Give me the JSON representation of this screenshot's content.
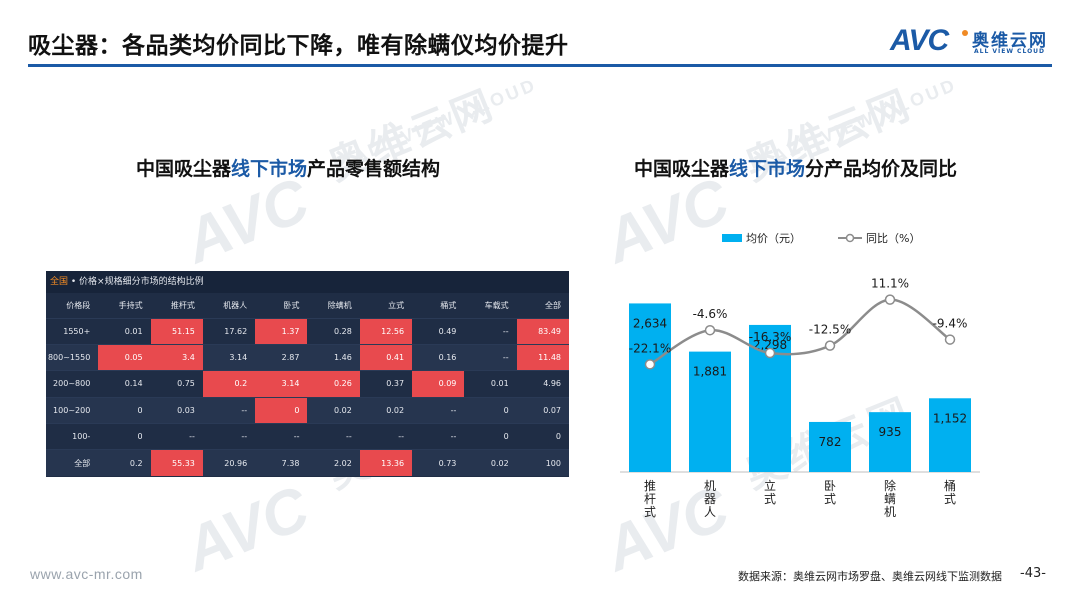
{
  "title": "吸尘器：各品类均价同比下降，唯有除螨仪均价提升",
  "logo": {
    "mark": "AVC",
    "cn": "奥维云网",
    "en": "ALL VIEW CLOUD"
  },
  "watermark": {
    "mark": "AVC",
    "cn": "奥维云网",
    "en": "ALL VIEW CLOUD"
  },
  "left": {
    "title_pre": "中国吸尘器",
    "title_hl": "线下市场",
    "title_post": "产品零售额结构",
    "table": {
      "caption_scope": "全国",
      "caption_rest": "• 价格×规格细分市场的结构比例",
      "columns": [
        "价格段",
        "手持式",
        "推杆式",
        "机器人",
        "卧式",
        "除螨机",
        "立式",
        "桶式",
        "车载式",
        "全部"
      ],
      "rows": [
        [
          "1550+",
          "0.01",
          "51.15",
          "17.62",
          "1.37",
          "0.28",
          "12.56",
          "0.49",
          "--",
          "83.49"
        ],
        [
          "800~1550",
          "0.05",
          "3.4",
          "3.14",
          "2.87",
          "1.46",
          "0.41",
          "0.16",
          "--",
          "11.48"
        ],
        [
          "200~800",
          "0.14",
          "0.75",
          "0.2",
          "3.14",
          "0.26",
          "0.37",
          "0.09",
          "0.01",
          "4.96"
        ],
        [
          "100~200",
          "0",
          "0.03",
          "--",
          "0",
          "0.02",
          "0.02",
          "--",
          "0",
          "0.07"
        ],
        [
          "100-",
          "0",
          "--",
          "--",
          "--",
          "--",
          "--",
          "--",
          "0",
          "0"
        ],
        [
          "全部",
          "0.2",
          "55.33",
          "20.96",
          "7.38",
          "2.02",
          "13.36",
          "0.73",
          "0.02",
          "100"
        ]
      ],
      "highlight": [
        [
          0,
          2
        ],
        [
          0,
          4
        ],
        [
          0,
          6
        ],
        [
          0,
          9
        ],
        [
          1,
          1
        ],
        [
          1,
          2
        ],
        [
          1,
          6
        ],
        [
          1,
          9
        ],
        [
          2,
          3
        ],
        [
          2,
          4
        ],
        [
          2,
          5
        ],
        [
          2,
          7
        ],
        [
          3,
          4
        ],
        [
          5,
          2
        ],
        [
          5,
          6
        ]
      ],
      "highlight_color": "#e84a4e"
    }
  },
  "right": {
    "title_pre": "中国吸尘器",
    "title_hl": "线下市场",
    "title_post": "分产品均价及同比"
  },
  "chart_data": {
    "type": "bar",
    "categories": [
      "推杆式",
      "机器人",
      "立式",
      "卧式",
      "除螨机",
      "桶式"
    ],
    "series": [
      {
        "name": "均价（元）",
        "kind": "bar",
        "color": "#00b0f0",
        "values": [
          2634,
          1881,
          2298,
          782,
          935,
          1152
        ],
        "labels": [
          "2,634",
          "1,881",
          "2,298",
          "782",
          "935",
          "1,152"
        ]
      },
      {
        "name": "同比（%）",
        "kind": "line",
        "color": "#8c8c8c",
        "values": [
          -22.1,
          -4.6,
          -16.3,
          -12.5,
          11.1,
          -9.4
        ],
        "labels": [
          "-22.1%",
          "-4.6%",
          "-16.3%",
          "-12.5%",
          "11.1%",
          "-9.4%"
        ]
      }
    ],
    "legend_position": "top",
    "grid": false
  },
  "footer": {
    "url": "www.avc-mr.com",
    "source": "数据来源：奥维云网市场罗盘、奥维云网线下监测数据",
    "page": "-43-"
  }
}
